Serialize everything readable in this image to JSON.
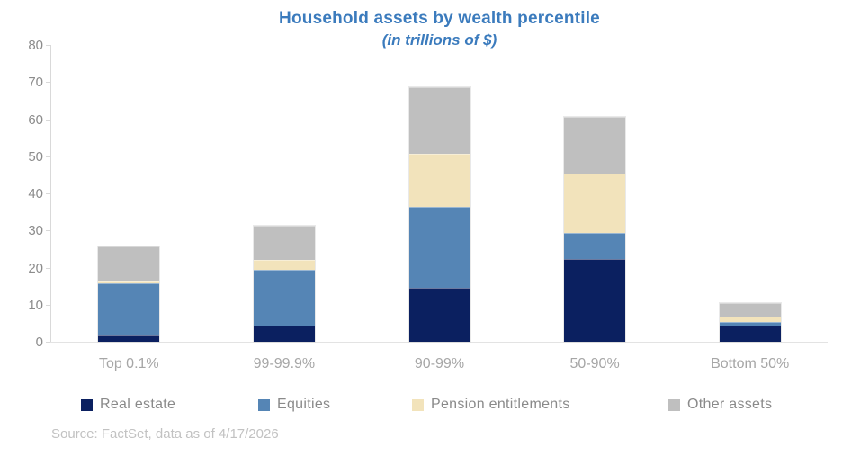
{
  "title": "Household assets by wealth percentile",
  "subtitle": "(in trillions of $)",
  "source_note": "Source: FactSet, data as of 4/17/2026",
  "colors": {
    "title_text": "#3b7bbd",
    "real_estate": "#0b2060",
    "equities": "#5585b5",
    "pension_entitlements": "#f2e3bb",
    "other_assets": "#bfbfbf",
    "axis_text": "#8c8c8c",
    "category_text": "#a6a6a6",
    "legend_text": "#8a8a8a",
    "source_text": "#c2c2c2",
    "axis_line": "#d9d9d9"
  },
  "chart_data": {
    "type": "bar",
    "stacked": true,
    "title": "Household assets by wealth percentile",
    "subtitle": "(in trillions of $)",
    "xlabel": "",
    "ylabel": "",
    "ylim": [
      0,
      80
    ],
    "yticks": [
      0,
      10,
      20,
      30,
      40,
      50,
      60,
      70,
      80
    ],
    "grid": false,
    "legend_position": "bottom",
    "categories": [
      "Top 0.1%",
      "99-99.9%",
      "90-99%",
      "50-90%",
      "Bottom 50%"
    ],
    "series": [
      {
        "name": "Real estate",
        "color": "#0b2060",
        "values": [
          1.8,
          4.4,
          14.5,
          22.3,
          4.4
        ]
      },
      {
        "name": "Equities",
        "color": "#5585b5",
        "values": [
          14.0,
          15.0,
          21.9,
          7.0,
          1.0
        ]
      },
      {
        "name": "Pension entitlements",
        "color": "#f2e3bb",
        "values": [
          0.6,
          2.6,
          14.3,
          16.0,
          1.3
        ]
      },
      {
        "name": "Other assets",
        "color": "#bfbfbf",
        "values": [
          9.4,
          9.3,
          17.8,
          15.2,
          3.8
        ]
      }
    ],
    "totals": [
      25.8,
      31.3,
      68.5,
      60.5,
      10.5
    ]
  }
}
